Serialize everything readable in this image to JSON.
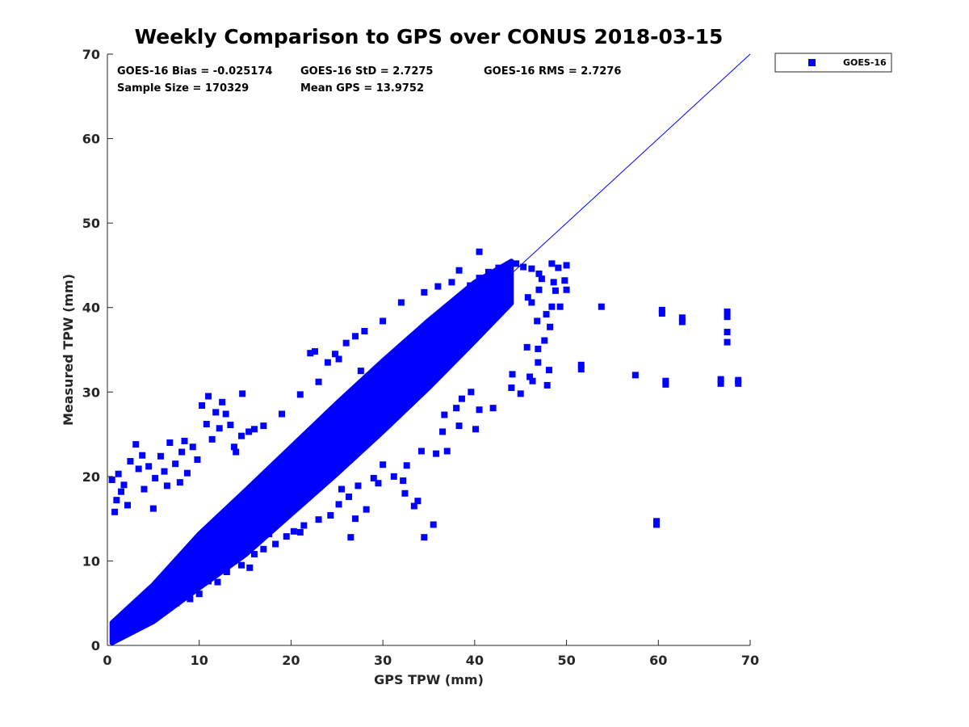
{
  "chart_data": {
    "type": "scatter",
    "title": "Weekly Comparison to GPS over CONUS 2018-03-15",
    "xlabel": "GPS TPW (mm)",
    "ylabel": "Measured TPW (mm)",
    "xlim": [
      0,
      70
    ],
    "ylim": [
      0,
      70
    ],
    "xticks": [
      "0",
      "10",
      "20",
      "30",
      "40",
      "50",
      "60",
      "70"
    ],
    "yticks": [
      "0",
      "10",
      "20",
      "30",
      "40",
      "50",
      "60",
      "70"
    ],
    "grid": false,
    "legend": {
      "position": "outside-top-right",
      "entries": [
        "GOES-16"
      ]
    },
    "reference_line": {
      "label": "1:1",
      "x": [
        1,
        70
      ],
      "y": [
        1,
        70
      ]
    },
    "series": [
      {
        "name": "GOES-16",
        "marker": "square",
        "color": "#0000ff",
        "dense_band": {
          "description": "dense point cloud along the 1:1 line",
          "centerline": [
            [
              0.5,
              1.5
            ],
            [
              5,
              5
            ],
            [
              10,
              10
            ],
            [
              15,
              14.5
            ],
            [
              20,
              19.5
            ],
            [
              25,
              24.5
            ],
            [
              30,
              29.5
            ],
            [
              35,
              34.5
            ],
            [
              40,
              39.5
            ],
            [
              44,
              43
            ]
          ],
          "halfwidth": [
            [
              0.5,
              1.2
            ],
            [
              5,
              2.2
            ],
            [
              10,
              3.2
            ],
            [
              15,
              3.8
            ],
            [
              20,
              4.0
            ],
            [
              25,
              4.2
            ],
            [
              30,
              4.2
            ],
            [
              35,
              4.0
            ],
            [
              40,
              3.5
            ],
            [
              44,
              2.5
            ]
          ]
        },
        "points": [
          [
            0.5,
            19.6
          ],
          [
            1.2,
            20.3
          ],
          [
            1.8,
            19.0
          ],
          [
            1.0,
            17.2
          ],
          [
            2.5,
            21.8
          ],
          [
            3.1,
            23.8
          ],
          [
            3.8,
            22.5
          ],
          [
            4.5,
            21.2
          ],
          [
            5.2,
            19.8
          ],
          [
            5.8,
            22.4
          ],
          [
            6.2,
            20.6
          ],
          [
            6.8,
            24.0
          ],
          [
            7.4,
            21.5
          ],
          [
            8.1,
            22.9
          ],
          [
            8.7,
            20.4
          ],
          [
            9.3,
            23.5
          ],
          [
            4.0,
            18.5
          ],
          [
            6.5,
            18.9
          ],
          [
            2.2,
            16.6
          ],
          [
            0.8,
            15.8
          ],
          [
            1.5,
            18.2
          ],
          [
            7.9,
            19.3
          ],
          [
            9.8,
            22.0
          ],
          [
            3.4,
            20.9
          ],
          [
            8.4,
            24.2
          ],
          [
            5.0,
            16.2
          ],
          [
            10.3,
            28.4
          ],
          [
            11.0,
            29.5
          ],
          [
            11.8,
            27.6
          ],
          [
            12.5,
            28.8
          ],
          [
            10.8,
            26.2
          ],
          [
            12.2,
            25.7
          ],
          [
            11.4,
            24.4
          ],
          [
            13.8,
            23.5
          ],
          [
            14.6,
            24.8
          ],
          [
            15.4,
            25.3
          ],
          [
            13.4,
            26.1
          ],
          [
            14.0,
            22.9
          ],
          [
            12.9,
            27.4
          ],
          [
            14.7,
            29.8
          ],
          [
            16.0,
            25.6
          ],
          [
            17.0,
            26.0
          ],
          [
            19.0,
            27.4
          ],
          [
            21.0,
            29.7
          ],
          [
            23.0,
            31.2
          ],
          [
            22.6,
            34.8
          ],
          [
            24.0,
            33.5
          ],
          [
            26.0,
            35.8
          ],
          [
            28.0,
            37.2
          ],
          [
            25.2,
            33.9
          ],
          [
            27.0,
            36.6
          ],
          [
            30.0,
            38.4
          ],
          [
            32.0,
            40.6
          ],
          [
            34.5,
            41.8
          ],
          [
            36.0,
            42.5
          ],
          [
            37.5,
            43.0
          ],
          [
            38.3,
            44.4
          ],
          [
            39.5,
            42.6
          ],
          [
            40.5,
            43.5
          ],
          [
            41.5,
            44.2
          ],
          [
            42.6,
            44.7
          ],
          [
            43.8,
            45.0
          ],
          [
            44.5,
            45.2
          ],
          [
            45.3,
            44.8
          ],
          [
            46.2,
            44.6
          ],
          [
            47.0,
            44.0
          ],
          [
            48.4,
            45.2
          ],
          [
            49.1,
            44.7
          ],
          [
            50.0,
            45.0
          ],
          [
            40.5,
            46.6
          ],
          [
            47.3,
            43.4
          ],
          [
            48.6,
            43.0
          ],
          [
            47.0,
            42.1
          ],
          [
            48.8,
            42.0
          ],
          [
            49.8,
            43.2
          ],
          [
            50.0,
            42.1
          ],
          [
            45.8,
            41.2
          ],
          [
            46.2,
            40.6
          ],
          [
            48.4,
            40.1
          ],
          [
            47.8,
            39.2
          ],
          [
            46.8,
            38.4
          ],
          [
            48.2,
            37.7
          ],
          [
            49.3,
            40.1
          ],
          [
            47.6,
            36.1
          ],
          [
            46.9,
            35.1
          ],
          [
            45.7,
            35.3
          ],
          [
            46.9,
            33.5
          ],
          [
            46.3,
            31.3
          ],
          [
            47.9,
            30.8
          ],
          [
            48.1,
            32.6
          ],
          [
            46.0,
            31.8
          ],
          [
            44.1,
            32.1
          ],
          [
            44.0,
            30.5
          ],
          [
            45.0,
            29.8
          ],
          [
            42.0,
            28.1
          ],
          [
            40.5,
            27.9
          ],
          [
            38.3,
            26.0
          ],
          [
            36.5,
            25.3
          ],
          [
            34.2,
            23.0
          ],
          [
            32.6,
            21.3
          ],
          [
            31.2,
            20.0
          ],
          [
            30.0,
            21.4
          ],
          [
            29.5,
            19.2
          ],
          [
            27.3,
            18.9
          ],
          [
            26.3,
            17.6
          ],
          [
            25.2,
            16.7
          ],
          [
            24.3,
            15.4
          ],
          [
            23.0,
            14.9
          ],
          [
            21.4,
            14.2
          ],
          [
            20.3,
            13.5
          ],
          [
            19.5,
            12.9
          ],
          [
            18.3,
            12.0
          ],
          [
            17.0,
            11.4
          ],
          [
            16.0,
            10.8
          ],
          [
            15.5,
            9.2
          ],
          [
            14.6,
            9.5
          ],
          [
            13.0,
            8.7
          ],
          [
            12.0,
            7.5
          ],
          [
            11.0,
            7.6
          ],
          [
            10.0,
            6.1
          ],
          [
            9.0,
            5.5
          ],
          [
            7.5,
            5.0
          ],
          [
            10.7,
            10.4
          ],
          [
            15.0,
            11.3
          ],
          [
            13.8,
            10.0
          ],
          [
            17.6,
            13.2
          ],
          [
            19.5,
            17.0
          ],
          [
            18.0,
            15.6
          ],
          [
            21.0,
            13.4
          ],
          [
            25.5,
            18.5
          ],
          [
            26.5,
            12.8
          ],
          [
            28.2,
            16.1
          ],
          [
            27.0,
            15.0
          ],
          [
            29.0,
            19.8
          ],
          [
            35.5,
            14.3
          ],
          [
            34.5,
            12.8
          ],
          [
            32.4,
            18.0
          ],
          [
            33.8,
            17.1
          ],
          [
            33.4,
            16.5
          ],
          [
            32.2,
            19.5
          ],
          [
            37.0,
            23.0
          ],
          [
            35.8,
            22.7
          ],
          [
            38.0,
            28.1
          ],
          [
            36.7,
            27.3
          ],
          [
            39.6,
            30.0
          ],
          [
            38.6,
            29.2
          ],
          [
            40.1,
            25.6
          ],
          [
            53.8,
            40.1
          ],
          [
            51.6,
            33.2
          ],
          [
            51.6,
            32.7
          ],
          [
            57.5,
            32.0
          ],
          [
            60.4,
            39.7
          ],
          [
            60.4,
            39.3
          ],
          [
            60.8,
            31.3
          ],
          [
            60.8,
            30.9
          ],
          [
            62.6,
            38.8
          ],
          [
            62.6,
            38.3
          ],
          [
            66.8,
            31.5
          ],
          [
            66.8,
            31.0
          ],
          [
            67.5,
            39.5
          ],
          [
            67.5,
            38.9
          ],
          [
            67.5,
            37.1
          ],
          [
            67.5,
            35.9
          ],
          [
            68.7,
            31.4
          ],
          [
            68.7,
            31.0
          ],
          [
            59.8,
            14.7
          ],
          [
            59.8,
            14.3
          ],
          [
            22.1,
            34.6
          ],
          [
            24.8,
            34.5
          ],
          [
            27.6,
            32.5
          ]
        ]
      }
    ],
    "stats": {
      "bias": "GOES-16 Bias = -0.025174",
      "std": "GOES-16 StD = 2.7275",
      "rms": "GOES-16 RMS = 2.7276",
      "sample_size": "Sample Size = 170329",
      "mean_gps": "Mean GPS = 13.9752"
    }
  }
}
